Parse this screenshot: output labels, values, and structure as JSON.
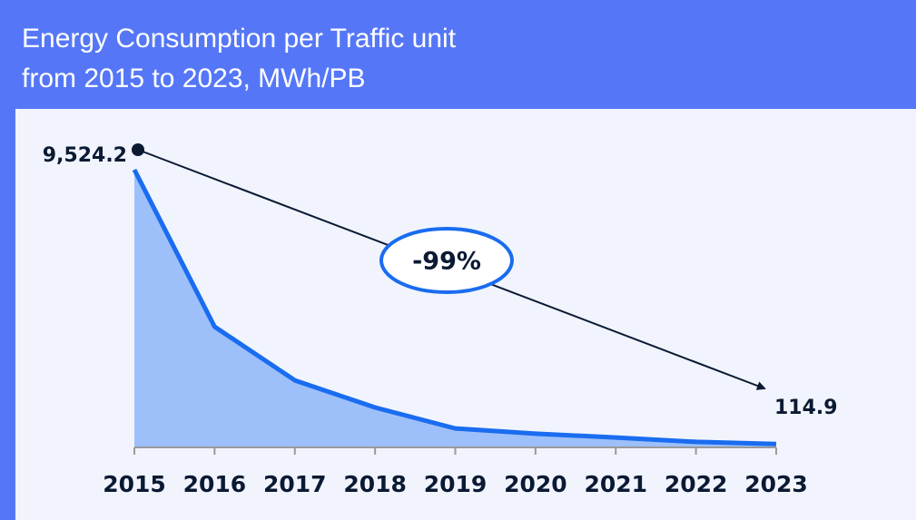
{
  "chart_data": {
    "type": "area",
    "title": [
      "Energy Consumption per Traffic unit",
      "from 2015 to 2023, MWh/PB"
    ],
    "categories": [
      "2015",
      "2016",
      "2017",
      "2018",
      "2019",
      "2020",
      "2021",
      "2022",
      "2023"
    ],
    "values": [
      9524.2,
      4140,
      2300,
      1370,
      650,
      470,
      340,
      190,
      114.9
    ],
    "value_labels": [
      "9,524.2",
      null,
      null,
      null,
      null,
      null,
      null,
      null,
      "114.9"
    ],
    "annotation": "-99%",
    "color": "#9dc0fb",
    "line_color": "#1a6cf0"
  }
}
